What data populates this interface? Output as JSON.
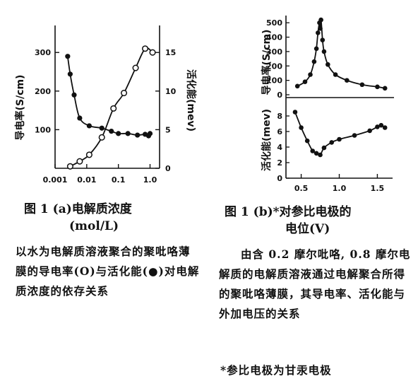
{
  "chart_data": [
    {
      "type": "line",
      "panel": "a",
      "ylabel_left": "导电率(S/cm)",
      "ylabel_right": "活化能(mev)",
      "x_ticks": [
        "0.001",
        "0.01",
        "0.1",
        "1.0"
      ],
      "y_left_ticks": [
        "300",
        "200",
        "100"
      ],
      "y_right_ticks": [
        "15",
        "10",
        "5",
        "0"
      ],
      "xscale": "log",
      "xlim": [
        0.001,
        2.0
      ],
      "ylim_left": [
        0,
        370
      ],
      "ylim_right": [
        0,
        18.5
      ],
      "series": [
        {
          "marker": "open-circle",
          "axis": "left",
          "x": [
            0.003,
            0.006,
            0.012,
            0.03,
            0.07,
            0.15,
            0.35,
            0.7,
            1.2
          ],
          "y": [
            5,
            18,
            35,
            80,
            155,
            195,
            260,
            310,
            300
          ]
        },
        {
          "marker": "filled-circle",
          "axis": "right",
          "x": [
            0.0025,
            0.003,
            0.004,
            0.006,
            0.012,
            0.03,
            0.06,
            0.1,
            0.2,
            0.4,
            0.7,
            0.9,
            1.0
          ],
          "y": [
            14.5,
            12.2,
            9.5,
            6.5,
            5.5,
            5.2,
            4.8,
            4.5,
            4.5,
            4.3,
            4.4,
            4.2,
            4.5
          ]
        }
      ]
    },
    {
      "type": "line",
      "panel": "b",
      "top": {
        "ylabel": "导电率(S/cm)",
        "y_ticks": [
          "500",
          "400",
          "300",
          "200",
          "100",
          "0"
        ],
        "ylim": [
          0,
          550
        ],
        "x": [
          0.45,
          0.55,
          0.62,
          0.67,
          0.7,
          0.72,
          0.74,
          0.75,
          0.76,
          0.78,
          0.8,
          0.85,
          0.95,
          1.1,
          1.3,
          1.5,
          1.6
        ],
        "y": [
          60,
          90,
          140,
          230,
          320,
          430,
          500,
          460,
          520,
          380,
          300,
          210,
          140,
          100,
          70,
          55,
          45
        ]
      },
      "bottom": {
        "ylabel": "活化能(mev)",
        "y_ticks": [
          "8",
          "6",
          "4",
          "2",
          "0"
        ],
        "ylim": [
          0,
          10
        ],
        "x": [
          0.42,
          0.5,
          0.58,
          0.65,
          0.7,
          0.75,
          0.8,
          0.9,
          1.0,
          1.2,
          1.4,
          1.5,
          1.55,
          1.6
        ],
        "y": [
          8.5,
          6.5,
          4.8,
          3.5,
          3.2,
          3.0,
          3.9,
          4.6,
          5.0,
          5.5,
          6.1,
          6.6,
          6.8,
          6.5
        ]
      },
      "x_ticks": [
        "0.5",
        "1.0",
        "1.5"
      ],
      "xlim": [
        0.3,
        1.7
      ]
    }
  ],
  "captions": {
    "a_line1": "图 1  (a)电解质浓度",
    "a_line2": "(mol/L)",
    "a_desc": "以水为电解质溶液聚合的聚吡咯薄膜的导电率(O)与活化能(●)对电解质浓度的依存关系",
    "b_line1": "图 1  (b)*对参比电极的",
    "b_line2": "电位(V)",
    "b_desc": "由含 0.2 摩尔吡咯, 0.8 摩尔电解质的电解质溶液通过电解聚合所得的聚吡咯薄膜，其导电率、活化能与外加电压的关系",
    "footnote": "*参比电极为甘汞电极"
  }
}
